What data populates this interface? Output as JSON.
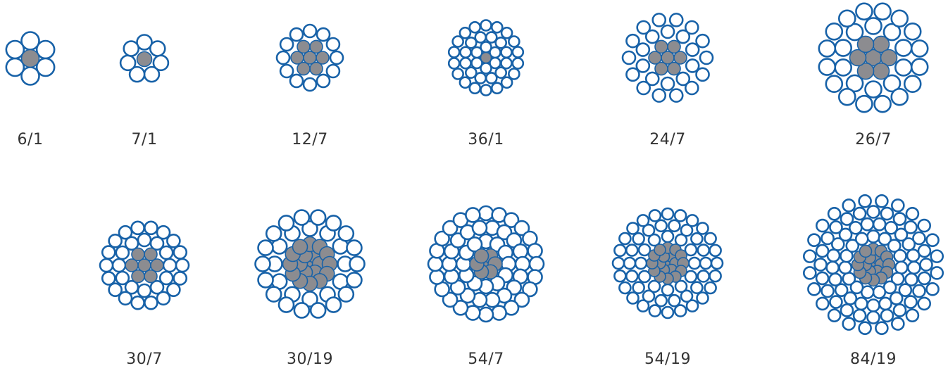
{
  "colors": {
    "outer_stroke": "#1862a8",
    "core_fill": "#8c8c90",
    "core_stroke": "#1862a8",
    "background": "#ffffff",
    "label_text": "#333333"
  },
  "strandings": [
    {
      "label": "6/1",
      "aluminum": 6,
      "steel": 1,
      "row": 1
    },
    {
      "label": "7/1",
      "aluminum": 7,
      "steel": 1,
      "row": 1
    },
    {
      "label": "12/7",
      "aluminum": 12,
      "steel": 7,
      "row": 1
    },
    {
      "label": "36/1",
      "aluminum": 36,
      "steel": 1,
      "row": 1
    },
    {
      "label": "24/7",
      "aluminum": 24,
      "steel": 7,
      "row": 1
    },
    {
      "label": "26/7",
      "aluminum": 26,
      "steel": 7,
      "row": 1
    },
    {
      "label": "30/7",
      "aluminum": 30,
      "steel": 7,
      "row": 2
    },
    {
      "label": "30/19",
      "aluminum": 30,
      "steel": 19,
      "row": 2
    },
    {
      "label": "54/7",
      "aluminum": 54,
      "steel": 7,
      "row": 2
    },
    {
      "label": "54/19",
      "aluminum": 54,
      "steel": 19,
      "row": 2
    },
    {
      "label": "84/19",
      "aluminum": 84,
      "steel": 19,
      "row": 2
    }
  ]
}
